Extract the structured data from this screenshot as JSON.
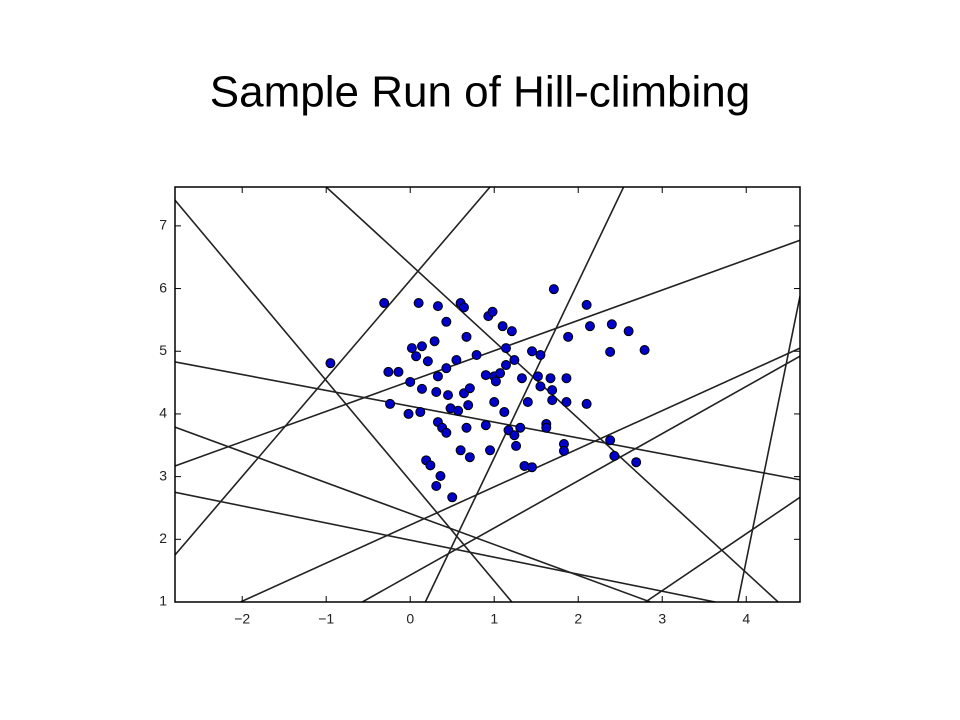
{
  "chart_data": {
    "type": "scatter",
    "title": "Sample Run of Hill-climbing",
    "x": [
      -0.95,
      -0.31,
      0.1,
      0.33,
      0.6,
      0.64,
      0.93,
      0.98,
      1.1,
      1.21,
      1.71,
      2.1,
      2.4,
      2.6,
      2.14,
      2.79,
      2.38,
      1.88,
      1.55,
      1.45,
      1.14,
      0.67,
      0.43,
      0.29,
      0.14,
      0.02,
      0.07,
      0.21,
      -0.26,
      -0.14,
      0.0,
      0.14,
      0.33,
      0.43,
      0.55,
      0.79,
      0.9,
      1.0,
      1.07,
      1.02,
      1.14,
      1.24,
      1.33,
      1.52,
      1.67,
      1.86,
      1.69,
      1.55,
      1.4,
      1.69,
      1.86,
      2.1,
      -0.24,
      -0.02,
      0.12,
      0.31,
      0.45,
      0.48,
      0.57,
      0.64,
      0.71,
      0.69,
      1.0,
      1.12,
      0.33,
      0.38,
      0.43,
      0.67,
      0.9,
      1.17,
      1.24,
      1.31,
      1.62,
      1.62,
      1.83,
      1.83,
      2.38,
      2.43,
      2.69,
      0.6,
      0.71,
      0.95,
      1.26,
      1.36,
      1.45,
      0.19,
      0.24,
      0.36,
      0.31,
      0.5
    ],
    "y": [
      4.81,
      5.77,
      5.77,
      5.72,
      5.77,
      5.7,
      5.56,
      5.63,
      5.4,
      5.32,
      5.99,
      5.74,
      5.43,
      5.32,
      5.4,
      5.02,
      4.99,
      5.23,
      4.94,
      5.0,
      5.05,
      5.23,
      5.47,
      5.16,
      5.08,
      5.05,
      4.92,
      4.84,
      4.67,
      4.67,
      4.51,
      4.4,
      4.6,
      4.73,
      4.86,
      4.94,
      4.62,
      4.6,
      4.65,
      4.52,
      4.78,
      4.86,
      4.57,
      4.6,
      4.57,
      4.57,
      4.38,
      4.44,
      4.19,
      4.22,
      4.19,
      4.16,
      4.16,
      4.0,
      4.03,
      4.35,
      4.3,
      4.09,
      4.05,
      4.33,
      4.41,
      4.14,
      4.19,
      4.03,
      3.87,
      3.78,
      3.7,
      3.78,
      3.82,
      3.74,
      3.66,
      3.78,
      3.84,
      3.78,
      3.52,
      3.41,
      3.58,
      3.33,
      3.23,
      3.42,
      3.31,
      3.42,
      3.49,
      3.17,
      3.15,
      3.26,
      3.18,
      3.01,
      2.85,
      2.67
    ],
    "color": "#0000c8",
    "lines": [
      {
        "x": [
          -2.8,
          1.21
        ],
        "y": [
          7.41,
          1.0
        ]
      },
      {
        "x": [
          -2.8,
          0.95
        ],
        "y": [
          1.75,
          7.62
        ]
      },
      {
        "x": [
          -1.0,
          4.38
        ],
        "y": [
          7.62,
          1.0
        ]
      },
      {
        "x": [
          -2.8,
          4.64
        ],
        "y": [
          3.17,
          6.77
        ]
      },
      {
        "x": [
          -2.8,
          4.64
        ],
        "y": [
          4.83,
          2.95
        ]
      },
      {
        "x": [
          -2.8,
          2.86
        ],
        "y": [
          3.79,
          1.0
        ]
      },
      {
        "x": [
          -2.8,
          3.63
        ],
        "y": [
          2.75,
          1.0
        ]
      },
      {
        "x": [
          -2.02,
          4.64
        ],
        "y": [
          1.0,
          5.05
        ]
      },
      {
        "x": [
          -0.57,
          4.64
        ],
        "y": [
          1.0,
          4.92
        ]
      },
      {
        "x": [
          0.18,
          2.54
        ],
        "y": [
          1.0,
          7.62
        ]
      },
      {
        "x": [
          3.9,
          4.64
        ],
        "y": [
          1.0,
          5.88
        ]
      },
      {
        "x": [
          2.8,
          4.64
        ],
        "y": [
          1.0,
          2.67
        ]
      }
    ],
    "line_color": "#222222",
    "xlim": [
      -2.8,
      4.64
    ],
    "ylim": [
      1,
      7.62
    ],
    "xticks": [
      {
        "value": -2,
        "label": "−2"
      },
      {
        "value": -1,
        "label": "−1"
      },
      0,
      1,
      2,
      3,
      4
    ],
    "yticks": [
      1,
      2,
      3,
      4,
      5,
      6,
      7
    ],
    "grid": false
  }
}
